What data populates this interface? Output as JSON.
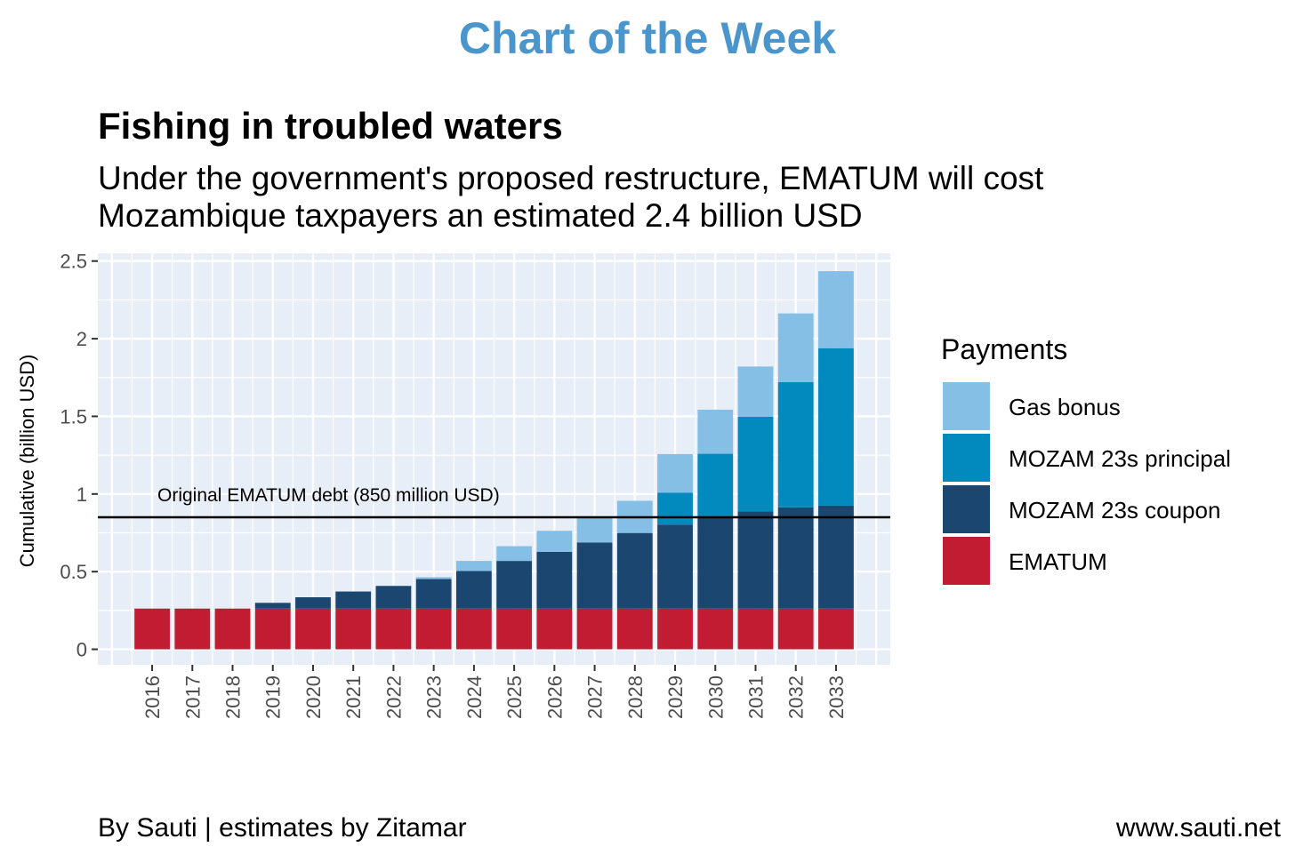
{
  "header": {
    "banner": "Chart of the Week",
    "title": "Fishing in troubled waters",
    "subtitle_line1": "Under the government's proposed restructure, EMATUM will cost",
    "subtitle_line2": "Mozambique taxpayers an estimated 2.4 billion USD"
  },
  "footer": {
    "left": "By Sauti | estimates by Zitamar",
    "right": "www.sauti.net"
  },
  "colors": {
    "banner": "#4A96CC",
    "panel": "#E8EEF7",
    "gas": "#85BFE6",
    "principal": "#0289BD",
    "coupon": "#1A4670",
    "ematum": "#C21C32"
  },
  "chart_data": {
    "type": "bar",
    "stacked": true,
    "categories": [
      "2016",
      "2017",
      "2018",
      "2019",
      "2020",
      "2021",
      "2022",
      "2023",
      "2024",
      "2025",
      "2026",
      "2027",
      "2028",
      "2029",
      "2030",
      "2031",
      "2032",
      "2033"
    ],
    "series": [
      {
        "name": "EMATUM",
        "color": "#C21C32",
        "values": [
          0.262,
          0.262,
          0.262,
          0.262,
          0.262,
          0.262,
          0.262,
          0.262,
          0.262,
          0.262,
          0.262,
          0.262,
          0.262,
          0.262,
          0.262,
          0.262,
          0.262,
          0.262
        ]
      },
      {
        "name": "MOZAM 23s coupon",
        "color": "#1A4670",
        "values": [
          0,
          0,
          0,
          0.037,
          0.073,
          0.11,
          0.146,
          0.19,
          0.242,
          0.307,
          0.365,
          0.426,
          0.487,
          0.541,
          0.598,
          0.627,
          0.652,
          0.663
        ]
      },
      {
        "name": "MOZAM 23s principal",
        "color": "#0289BD",
        "values": [
          0,
          0,
          0,
          0,
          0,
          0,
          0,
          0,
          0,
          0,
          0,
          0,
          0,
          0.206,
          0.399,
          0.609,
          0.806,
          1.014
        ]
      },
      {
        "name": "Gas bonus",
        "color": "#85BFE6",
        "values": [
          0,
          0,
          0,
          0,
          0,
          0,
          0,
          0.012,
          0.065,
          0.095,
          0.136,
          0.161,
          0.207,
          0.248,
          0.284,
          0.323,
          0.443,
          0.496
        ]
      }
    ],
    "ylabel": "Cumulative (billion USD)",
    "xlabel": "",
    "yticks": [
      0,
      0.5,
      1,
      1.5,
      2,
      2.5
    ],
    "ytick_labels": [
      "0",
      "0.5",
      "1",
      "1.5",
      "2",
      "2.5"
    ],
    "ylim": [
      -0.1,
      2.55
    ],
    "xlim": [
      2014.65,
      2034.35
    ],
    "grid": true,
    "hline": {
      "value": 0.85,
      "label": "Original EMATUM debt (850 million USD)"
    },
    "legend": {
      "title": "Payments",
      "position": "right",
      "entries": [
        "Gas bonus",
        "MOZAM 23s principal",
        "MOZAM 23s coupon",
        "EMATUM"
      ]
    }
  }
}
